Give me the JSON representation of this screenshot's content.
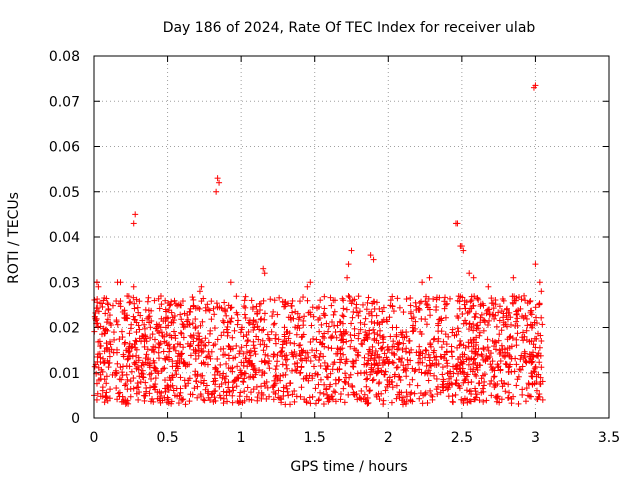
{
  "chart_data": {
    "type": "scatter",
    "title": "Day 186 of 2024, Rate Of TEC Index for receiver ulab",
    "xlabel": "GPS time / hours",
    "ylabel": "ROTI / TECUs",
    "xlim": [
      0,
      3.5
    ],
    "ylim": [
      0,
      0.08
    ],
    "x_ticks": [
      "0",
      "0.5",
      "1",
      "1.5",
      "2",
      "2.5",
      "3",
      "3.5"
    ],
    "y_ticks": [
      "0",
      "0.01",
      "0.02",
      "0.03",
      "0.04",
      "0.05",
      "0.06",
      "0.07",
      "0.08"
    ],
    "grid": true,
    "marker": "+",
    "point_color": "#ff0000",
    "series": [
      {
        "points": [
          [
            0.27,
            0.043
          ],
          [
            0.28,
            0.045
          ],
          [
            0.83,
            0.05
          ],
          [
            0.84,
            0.053
          ],
          [
            0.85,
            0.052
          ],
          [
            2.46,
            0.043
          ],
          [
            2.47,
            0.043
          ],
          [
            2.99,
            0.073
          ],
          [
            3.0,
            0.0735
          ],
          [
            1.75,
            0.037
          ],
          [
            1.88,
            0.036
          ],
          [
            1.9,
            0.035
          ],
          [
            2.49,
            0.038
          ],
          [
            2.5,
            0.038
          ],
          [
            2.51,
            0.037
          ],
          [
            0.02,
            0.03
          ],
          [
            0.03,
            0.029
          ],
          [
            0.16,
            0.03
          ],
          [
            0.18,
            0.03
          ],
          [
            0.27,
            0.029
          ],
          [
            0.72,
            0.028
          ],
          [
            0.73,
            0.029
          ],
          [
            0.93,
            0.03
          ],
          [
            1.15,
            0.033
          ],
          [
            1.16,
            0.032
          ],
          [
            1.45,
            0.029
          ],
          [
            1.47,
            0.03
          ],
          [
            1.72,
            0.031
          ],
          [
            1.73,
            0.034
          ],
          [
            2.23,
            0.03
          ],
          [
            2.28,
            0.031
          ],
          [
            2.55,
            0.032
          ],
          [
            2.58,
            0.031
          ],
          [
            2.68,
            0.029
          ],
          [
            2.85,
            0.031
          ],
          [
            3.0,
            0.034
          ],
          [
            3.03,
            0.03
          ],
          [
            3.04,
            0.028
          ],
          [
            0.0,
            0.005
          ],
          [
            0.02,
            0.004
          ],
          [
            0.3,
            0.004
          ],
          [
            0.55,
            0.005
          ],
          [
            0.6,
            0.004
          ],
          [
            0.9,
            0.005
          ],
          [
            1.3,
            0.003
          ],
          [
            1.32,
            0.005
          ],
          [
            1.6,
            0.004
          ],
          [
            1.85,
            0.004
          ],
          [
            2.1,
            0.003
          ],
          [
            2.15,
            0.004
          ],
          [
            2.3,
            0.004
          ],
          [
            2.7,
            0.005
          ],
          [
            2.95,
            0.005
          ],
          [
            3.05,
            0.004
          ]
        ]
      }
    ]
  }
}
